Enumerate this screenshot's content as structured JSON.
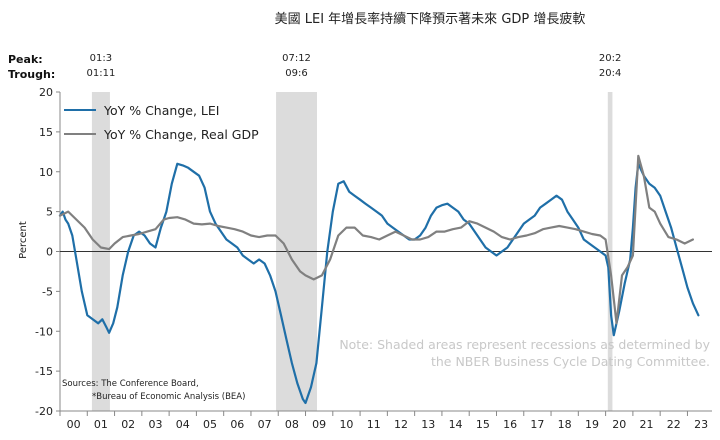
{
  "title": "美國 LEI 年增長率持續下降預示著未來 GDP 增長疲軟",
  "peak_label": "Peak:",
  "trough_label": "Trough:",
  "recessions": [
    {
      "peak": "01:3",
      "trough": "01:11",
      "start": 2001.17,
      "end": 2001.83
    },
    {
      "peak": "07:12",
      "trough": "09:6",
      "start": 2007.92,
      "end": 2009.42
    },
    {
      "peak": "20:2",
      "trough": "20:4",
      "start": 2020.08,
      "end": 2020.25
    }
  ],
  "note": [
    "Note: Shaded areas represent recessions as determined by",
    "the NBER Business Cycle Dating Committee."
  ],
  "sources": [
    "Sources: The Conference Board,",
    "*Bureau of Economic Analysis (BEA)"
  ],
  "chart_data": {
    "type": "line",
    "title": "美國 LEI 年增長率持續下降預示著未來 GDP 增長疲軟",
    "ylabel": "Percent",
    "xlabel": "",
    "ylim": [
      -20,
      20
    ],
    "xlim": [
      2000,
      2023.9
    ],
    "yticks": [
      -20,
      -15,
      -10,
      -5,
      0,
      5,
      10,
      15,
      20
    ],
    "xtick_labels": [
      "00",
      "01",
      "02",
      "03",
      "04",
      "05",
      "06",
      "07",
      "08",
      "09",
      "10",
      "11",
      "12",
      "13",
      "14",
      "15",
      "16",
      "17",
      "18",
      "19",
      "20",
      "21",
      "22",
      "23"
    ],
    "legend_position": "top-left",
    "series": [
      {
        "name": "YoY % Change, LEI",
        "color": "#1f6fa8",
        "x": [
          2000.0,
          2000.1,
          2000.2,
          2000.3,
          2000.45,
          2000.6,
          2000.8,
          2001.0,
          2001.2,
          2001.4,
          2001.55,
          2001.7,
          2001.8,
          2001.95,
          2002.1,
          2002.3,
          2002.5,
          2002.7,
          2002.9,
          2003.1,
          2003.3,
          2003.5,
          2003.7,
          2003.9,
          2004.1,
          2004.3,
          2004.5,
          2004.7,
          2004.9,
          2005.1,
          2005.3,
          2005.5,
          2005.7,
          2005.9,
          2006.1,
          2006.3,
          2006.5,
          2006.7,
          2006.9,
          2007.1,
          2007.3,
          2007.5,
          2007.7,
          2007.9,
          2008.1,
          2008.3,
          2008.5,
          2008.7,
          2008.9,
          2009.0,
          2009.2,
          2009.4,
          2009.6,
          2009.8,
          2010.0,
          2010.2,
          2010.4,
          2010.6,
          2010.8,
          2011.0,
          2011.2,
          2011.4,
          2011.6,
          2011.8,
          2012.0,
          2012.2,
          2012.4,
          2012.6,
          2012.8,
          2013.0,
          2013.2,
          2013.4,
          2013.6,
          2013.8,
          2014.0,
          2014.2,
          2014.4,
          2014.6,
          2014.8,
          2015.0,
          2015.2,
          2015.4,
          2015.6,
          2015.8,
          2016.0,
          2016.2,
          2016.4,
          2016.6,
          2016.8,
          2017.0,
          2017.2,
          2017.4,
          2017.6,
          2017.8,
          2018.0,
          2018.2,
          2018.4,
          2018.6,
          2018.8,
          2019.0,
          2019.2,
          2019.4,
          2019.6,
          2019.8,
          2020.0,
          2020.1,
          2020.2,
          2020.3,
          2020.5,
          2020.7,
          2020.9,
          2021.0,
          2021.1,
          2021.2,
          2021.4,
          2021.6,
          2021.8,
          2022.0,
          2022.2,
          2022.4,
          2022.6,
          2022.8,
          2023.0,
          2023.2,
          2023.4
        ],
        "y": [
          4.5,
          5.0,
          4.0,
          3.5,
          2.0,
          -1.0,
          -5.0,
          -8.0,
          -8.5,
          -9.0,
          -8.5,
          -9.5,
          -10.2,
          -9.0,
          -7.0,
          -3.0,
          0.0,
          2.0,
          2.5,
          2.0,
          1.0,
          0.5,
          3.0,
          5.0,
          8.5,
          11.0,
          10.8,
          10.5,
          10.0,
          9.5,
          8.0,
          5.0,
          3.5,
          2.5,
          1.5,
          1.0,
          0.5,
          -0.5,
          -1.0,
          -1.5,
          -1.0,
          -1.5,
          -3.0,
          -5.0,
          -8.0,
          -11.0,
          -14.0,
          -16.5,
          -18.5,
          -19.0,
          -17.0,
          -14.0,
          -7.0,
          0.0,
          5.0,
          8.5,
          8.8,
          7.5,
          7.0,
          6.5,
          6.0,
          5.5,
          5.0,
          4.5,
          3.5,
          3.0,
          2.5,
          2.0,
          1.5,
          1.5,
          2.0,
          3.0,
          4.5,
          5.5,
          5.8,
          6.0,
          5.5,
          5.0,
          4.0,
          3.5,
          2.5,
          1.5,
          0.5,
          0.0,
          -0.5,
          0.0,
          0.5,
          1.5,
          2.5,
          3.5,
          4.0,
          4.5,
          5.5,
          6.0,
          6.5,
          7.0,
          6.5,
          5.0,
          4.0,
          3.0,
          1.5,
          1.0,
          0.5,
          0.0,
          -0.5,
          -2.0,
          -8.0,
          -10.5,
          -7.5,
          -4.0,
          -1.0,
          3.0,
          8.0,
          11.0,
          9.5,
          8.5,
          8.0,
          7.0,
          5.0,
          3.0,
          0.5,
          -2.0,
          -4.5,
          -6.5,
          -8.0
        ]
      },
      {
        "name": "YoY % Change, Real GDP",
        "color": "#808080",
        "x": [
          2000.0,
          2000.3,
          2000.6,
          2000.9,
          2001.2,
          2001.5,
          2001.8,
          2002.0,
          2002.3,
          2002.6,
          2002.9,
          2003.2,
          2003.5,
          2003.8,
          2004.0,
          2004.3,
          2004.6,
          2004.9,
          2005.2,
          2005.5,
          2005.8,
          2006.1,
          2006.4,
          2006.7,
          2007.0,
          2007.3,
          2007.6,
          2007.9,
          2008.2,
          2008.5,
          2008.8,
          2009.0,
          2009.3,
          2009.6,
          2009.9,
          2010.2,
          2010.5,
          2010.8,
          2011.1,
          2011.4,
          2011.7,
          2012.0,
          2012.3,
          2012.6,
          2012.9,
          2013.2,
          2013.5,
          2013.8,
          2014.1,
          2014.4,
          2014.7,
          2015.0,
          2015.3,
          2015.6,
          2015.9,
          2016.2,
          2016.5,
          2016.8,
          2017.1,
          2017.4,
          2017.7,
          2018.0,
          2018.3,
          2018.6,
          2018.9,
          2019.2,
          2019.5,
          2019.8,
          2020.0,
          2020.2,
          2020.4,
          2020.6,
          2020.8,
          2021.0,
          2021.2,
          2021.4,
          2021.6,
          2021.8,
          2022.0,
          2022.3,
          2022.6,
          2022.9,
          2023.2
        ],
        "y": [
          4.5,
          5.0,
          4.0,
          3.0,
          1.5,
          0.5,
          0.3,
          1.0,
          1.8,
          2.0,
          2.2,
          2.5,
          2.8,
          4.0,
          4.2,
          4.3,
          4.0,
          3.5,
          3.4,
          3.5,
          3.2,
          3.0,
          2.8,
          2.5,
          2.0,
          1.8,
          2.0,
          2.0,
          1.0,
          -1.0,
          -2.5,
          -3.0,
          -3.5,
          -3.0,
          -1.0,
          2.0,
          3.0,
          3.0,
          2.0,
          1.8,
          1.5,
          2.0,
          2.5,
          2.0,
          1.5,
          1.5,
          1.8,
          2.5,
          2.5,
          2.8,
          3.0,
          3.8,
          3.5,
          3.0,
          2.5,
          1.8,
          1.5,
          1.8,
          2.0,
          2.3,
          2.8,
          3.0,
          3.2,
          3.0,
          2.8,
          2.5,
          2.2,
          2.0,
          1.5,
          -3.0,
          -9.0,
          -3.0,
          -2.0,
          -0.5,
          12.0,
          9.5,
          5.5,
          5.0,
          3.5,
          1.8,
          1.5,
          1.0,
          1.5
        ]
      }
    ]
  }
}
